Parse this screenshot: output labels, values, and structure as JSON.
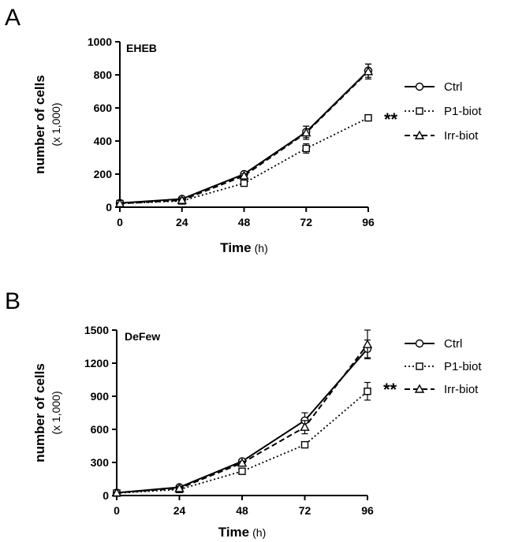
{
  "chart_data": [
    {
      "type": "line",
      "panel_label": "A",
      "annotation": "EHEB",
      "xlabel": "Time",
      "xlabel_unit": "(h)",
      "ylabel": "number of cells",
      "ylabel_unit": "(x 1,000)",
      "x": [
        0,
        24,
        48,
        72,
        96
      ],
      "xlim": [
        0,
        96
      ],
      "ylim": [
        0,
        1000
      ],
      "yticks": [
        0,
        200,
        400,
        600,
        800,
        1000
      ],
      "grid": false,
      "legend_position": "right",
      "significance": "**",
      "series": [
        {
          "name": "Ctrl",
          "marker": "circle",
          "dash": "solid",
          "values": [
            25,
            50,
            200,
            455,
            825
          ],
          "err": [
            5,
            8,
            12,
            35,
            40
          ]
        },
        {
          "name": "P1-biot",
          "marker": "square",
          "dash": "dotted",
          "values": [
            22,
            38,
            145,
            355,
            540
          ],
          "err": [
            5,
            6,
            10,
            28,
            15
          ]
        },
        {
          "name": "Irr-biot",
          "marker": "triangle",
          "dash": "dashed",
          "values": [
            22,
            42,
            190,
            450,
            820
          ],
          "err": [
            5,
            6,
            12,
            40,
            45
          ]
        }
      ]
    },
    {
      "type": "line",
      "panel_label": "B",
      "annotation": "DeFew",
      "xlabel": "Time",
      "xlabel_unit": "(h)",
      "ylabel": "number of cells",
      "ylabel_unit": "(x 1,000)",
      "x": [
        0,
        24,
        48,
        72,
        96
      ],
      "xlim": [
        0,
        96
      ],
      "ylim": [
        0,
        1500
      ],
      "yticks": [
        0,
        300,
        600,
        900,
        1200,
        1500
      ],
      "grid": false,
      "legend_position": "right",
      "significance": "**",
      "series": [
        {
          "name": "Ctrl",
          "marker": "circle",
          "dash": "solid",
          "values": [
            25,
            75,
            310,
            680,
            1330
          ],
          "err": [
            5,
            10,
            15,
            70,
            80
          ]
        },
        {
          "name": "P1-biot",
          "marker": "square",
          "dash": "dotted",
          "values": [
            22,
            55,
            220,
            460,
            945
          ],
          "err": [
            5,
            8,
            12,
            25,
            80
          ]
        },
        {
          "name": "Irr-biot",
          "marker": "triangle",
          "dash": "dashed",
          "values": [
            25,
            65,
            295,
            620,
            1370
          ],
          "err": [
            5,
            8,
            15,
            60,
            130
          ]
        }
      ]
    }
  ]
}
